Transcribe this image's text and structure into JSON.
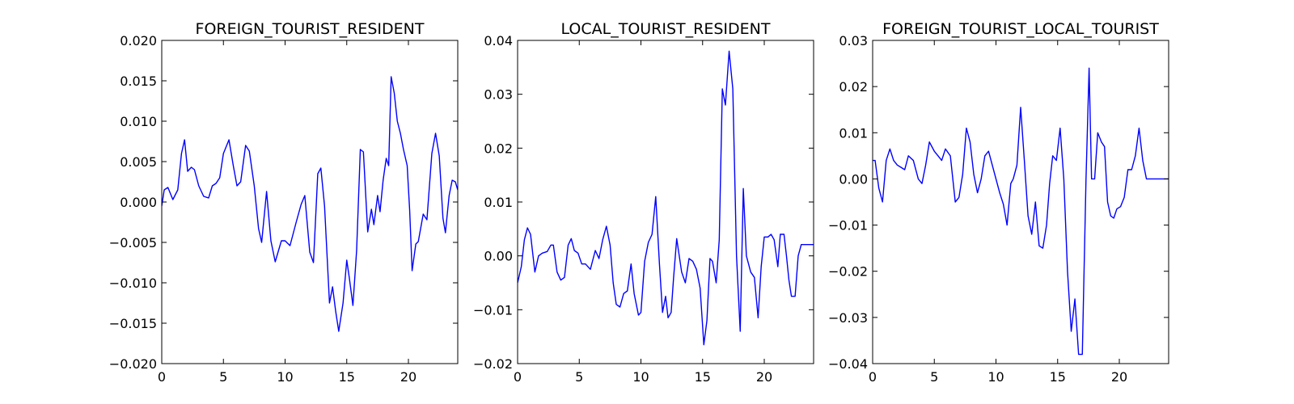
{
  "colors": {
    "line": "#0000ff",
    "axes": "#000000",
    "background": "#ffffff"
  },
  "chart_data": [
    {
      "type": "line",
      "title": "FOREIGN_TOURIST_RESIDENT",
      "xlabel": "",
      "ylabel": "",
      "xlim": [
        0,
        24
      ],
      "ylim": [
        -0.02,
        0.02
      ],
      "xticks": [
        0,
        5,
        10,
        15,
        20
      ],
      "yticks": [
        -0.02,
        -0.015,
        -0.01,
        -0.005,
        0.0,
        0.005,
        0.01,
        0.015,
        0.02
      ],
      "ytick_labels": [
        "−0.020",
        "−0.015",
        "−0.010",
        "−0.005",
        "0.000",
        "0.005",
        "0.010",
        "0.015",
        "0.020"
      ],
      "grid": false,
      "series": [
        {
          "x": [
            0,
            0.2,
            0.5,
            0.9,
            1.3,
            1.6,
            1.85,
            2.1,
            2.4,
            2.65,
            3.0,
            3.4,
            3.8,
            4.1,
            4.4,
            4.7,
            5.0,
            5.45,
            5.8,
            6.1,
            6.4,
            6.8,
            7.1,
            7.5,
            7.85,
            8.1,
            8.5,
            8.85,
            9.2,
            9.7,
            10.0,
            10.4,
            10.9,
            11.3,
            11.6,
            12.0,
            12.3,
            12.65,
            12.9,
            13.2,
            13.6,
            13.85,
            14.1,
            14.35,
            14.7,
            15.0,
            15.2,
            15.5,
            15.8,
            16.1,
            16.35,
            16.7,
            17.0,
            17.2,
            17.5,
            17.7,
            17.95,
            18.2,
            18.4,
            18.6,
            18.85,
            19.1,
            19.35,
            19.6,
            19.9,
            20.1,
            20.3,
            20.6,
            20.8,
            21.2,
            21.5,
            21.9,
            22.2,
            22.5,
            22.8,
            23.0,
            23.3,
            23.55,
            23.8,
            24.0
          ],
          "y": [
            -0.0005,
            0.0015,
            0.0018,
            0.0003,
            0.0015,
            0.006,
            0.0077,
            0.0038,
            0.0043,
            0.004,
            0.002,
            0.0007,
            0.0005,
            0.002,
            0.0023,
            0.003,
            0.006,
            0.0077,
            0.0045,
            0.002,
            0.0025,
            0.007,
            0.0063,
            0.002,
            -0.0033,
            -0.005,
            0.0013,
            -0.0048,
            -0.0074,
            -0.0048,
            -0.0048,
            -0.0054,
            -0.0025,
            -0.0003,
            0.0008,
            -0.0062,
            -0.0075,
            0.0035,
            0.0042,
            -0.0005,
            -0.0125,
            -0.0105,
            -0.0135,
            -0.016,
            -0.0125,
            -0.0072,
            -0.0093,
            -0.0128,
            -0.006,
            0.0065,
            0.0062,
            -0.0037,
            -0.0009,
            -0.0028,
            0.0008,
            -0.0012,
            0.0027,
            0.0054,
            0.0045,
            0.0155,
            0.0135,
            0.01,
            0.0085,
            0.0065,
            0.0045,
            -0.001,
            -0.0085,
            -0.0052,
            -0.0049,
            -0.0015,
            -0.0022,
            0.006,
            0.0085,
            0.0057,
            -0.002,
            -0.0038,
            0.0008,
            0.0027,
            0.0025,
            0.0015
          ]
        }
      ]
    },
    {
      "type": "line",
      "title": "LOCAL_TOURIST_RESIDENT",
      "xlabel": "",
      "ylabel": "",
      "xlim": [
        0,
        24
      ],
      "ylim": [
        -0.02,
        0.04
      ],
      "xticks": [
        0,
        5,
        10,
        15,
        20
      ],
      "yticks": [
        -0.02,
        -0.01,
        0.0,
        0.01,
        0.02,
        0.03,
        0.04
      ],
      "ytick_labels": [
        "−0.02",
        "−0.01",
        "0.00",
        "0.01",
        "0.02",
        "0.03",
        "0.04"
      ],
      "grid": false,
      "series": [
        {
          "x": [
            0,
            0.3,
            0.55,
            0.8,
            1.05,
            1.4,
            1.7,
            2.0,
            2.4,
            2.7,
            2.9,
            3.2,
            3.5,
            3.8,
            4.1,
            4.35,
            4.6,
            4.9,
            5.2,
            5.5,
            5.9,
            6.3,
            6.6,
            6.9,
            7.2,
            7.5,
            7.75,
            8.0,
            8.3,
            8.6,
            8.9,
            9.2,
            9.45,
            9.8,
            10.0,
            10.3,
            10.6,
            10.9,
            11.2,
            11.5,
            11.75,
            12.0,
            12.2,
            12.45,
            12.65,
            12.9,
            13.3,
            13.6,
            13.9,
            14.2,
            14.5,
            14.8,
            15.1,
            15.35,
            15.6,
            15.8,
            16.1,
            16.35,
            16.6,
            16.85,
            17.15,
            17.45,
            17.75,
            18.05,
            18.3,
            18.55,
            18.9,
            19.2,
            19.5,
            19.75,
            20.0,
            20.3,
            20.55,
            20.8,
            21.1,
            21.3,
            21.6,
            21.8,
            22.0,
            22.2,
            22.5,
            22.75,
            23.0,
            23.3,
            23.6,
            23.8,
            24.0
          ],
          "y": [
            -0.005,
            -0.002,
            0.003,
            0.0052,
            0.004,
            -0.003,
            0.0,
            0.0005,
            0.0008,
            0.002,
            0.002,
            -0.003,
            -0.0045,
            -0.004,
            0.002,
            0.0032,
            0.001,
            0.0005,
            -0.0015,
            -0.0015,
            -0.0025,
            0.001,
            -0.0005,
            0.003,
            0.0055,
            0.002,
            -0.005,
            -0.009,
            -0.0095,
            -0.007,
            -0.0065,
            -0.0015,
            -0.007,
            -0.011,
            -0.0105,
            -0.001,
            0.0025,
            0.004,
            0.011,
            -0.0015,
            -0.0105,
            -0.0075,
            -0.0115,
            -0.0105,
            -0.004,
            0.0032,
            -0.003,
            -0.005,
            -0.0005,
            -0.001,
            -0.0025,
            -0.006,
            -0.0165,
            -0.012,
            -0.0005,
            -0.001,
            -0.005,
            0.003,
            0.031,
            0.028,
            0.038,
            0.031,
            0.0,
            -0.014,
            0.0125,
            0.0,
            -0.003,
            -0.004,
            -0.0115,
            -0.002,
            0.0035,
            0.0035,
            0.004,
            0.003,
            -0.002,
            0.004,
            0.004,
            0.0,
            -0.0045,
            -0.0075,
            -0.0075,
            0.0,
            0.0021,
            0.0021,
            0.0021,
            0.0021,
            0.0021
          ]
        }
      ]
    },
    {
      "type": "line",
      "title": "FOREIGN_TOURIST_LOCAL_TOURIST",
      "xlabel": "",
      "ylabel": "",
      "xlim": [
        0,
        24
      ],
      "ylim": [
        -0.04,
        0.03
      ],
      "xticks": [
        0,
        5,
        10,
        15,
        20
      ],
      "yticks": [
        -0.04,
        -0.03,
        -0.02,
        -0.01,
        0.0,
        0.01,
        0.02,
        0.03
      ],
      "ytick_labels": [
        "−0.04",
        "−0.03",
        "−0.02",
        "−0.01",
        "0.00",
        "0.01",
        "0.02",
        "0.03"
      ],
      "grid": false,
      "series": [
        {
          "x": [
            0,
            0.2,
            0.5,
            0.8,
            1.1,
            1.4,
            1.7,
            2.0,
            2.3,
            2.6,
            2.9,
            3.3,
            3.7,
            4.0,
            4.3,
            4.6,
            5.0,
            5.3,
            5.6,
            5.9,
            6.3,
            6.7,
            7.0,
            7.3,
            7.6,
            7.9,
            8.2,
            8.5,
            8.8,
            9.1,
            9.4,
            9.7,
            10.0,
            10.3,
            10.6,
            10.9,
            11.2,
            11.4,
            11.7,
            12.0,
            12.3,
            12.6,
            12.9,
            13.2,
            13.5,
            13.8,
            14.1,
            14.35,
            14.6,
            14.9,
            15.2,
            15.5,
            15.8,
            16.1,
            16.4,
            16.7,
            17.0,
            17.3,
            17.55,
            17.75,
            18.0,
            18.25,
            18.55,
            18.8,
            19.05,
            19.3,
            19.55,
            19.8,
            20.1,
            20.4,
            20.7,
            21.0,
            21.3,
            21.6,
            21.9,
            22.2,
            22.5,
            22.8,
            23.1,
            23.3,
            23.55,
            23.8,
            24.0
          ],
          "y": [
            0.004,
            0.004,
            -0.002,
            -0.005,
            0.004,
            0.0065,
            0.004,
            0.003,
            0.0025,
            0.002,
            0.005,
            0.004,
            0.0,
            -0.001,
            0.003,
            0.008,
            0.006,
            0.005,
            0.004,
            0.0065,
            0.005,
            -0.005,
            -0.004,
            0.001,
            0.011,
            0.008,
            0.001,
            -0.003,
            0.0,
            0.005,
            0.006,
            0.003,
            0.0,
            -0.003,
            -0.0055,
            -0.01,
            -0.001,
            0.0,
            0.003,
            0.0155,
            0.004,
            -0.008,
            -0.012,
            -0.005,
            -0.0145,
            -0.015,
            -0.01,
            -0.001,
            0.005,
            0.004,
            0.011,
            0.0,
            -0.02,
            -0.033,
            -0.026,
            -0.038,
            -0.038,
            0.0,
            0.024,
            0.0,
            0.0,
            0.01,
            0.008,
            0.007,
            -0.005,
            -0.008,
            -0.0085,
            -0.0065,
            -0.006,
            -0.004,
            0.002,
            0.002,
            0.005,
            0.011,
            0.004,
            0.0,
            0.0,
            0.0,
            0.0,
            0.0,
            0.0,
            0.0,
            0.0
          ]
        }
      ]
    }
  ]
}
